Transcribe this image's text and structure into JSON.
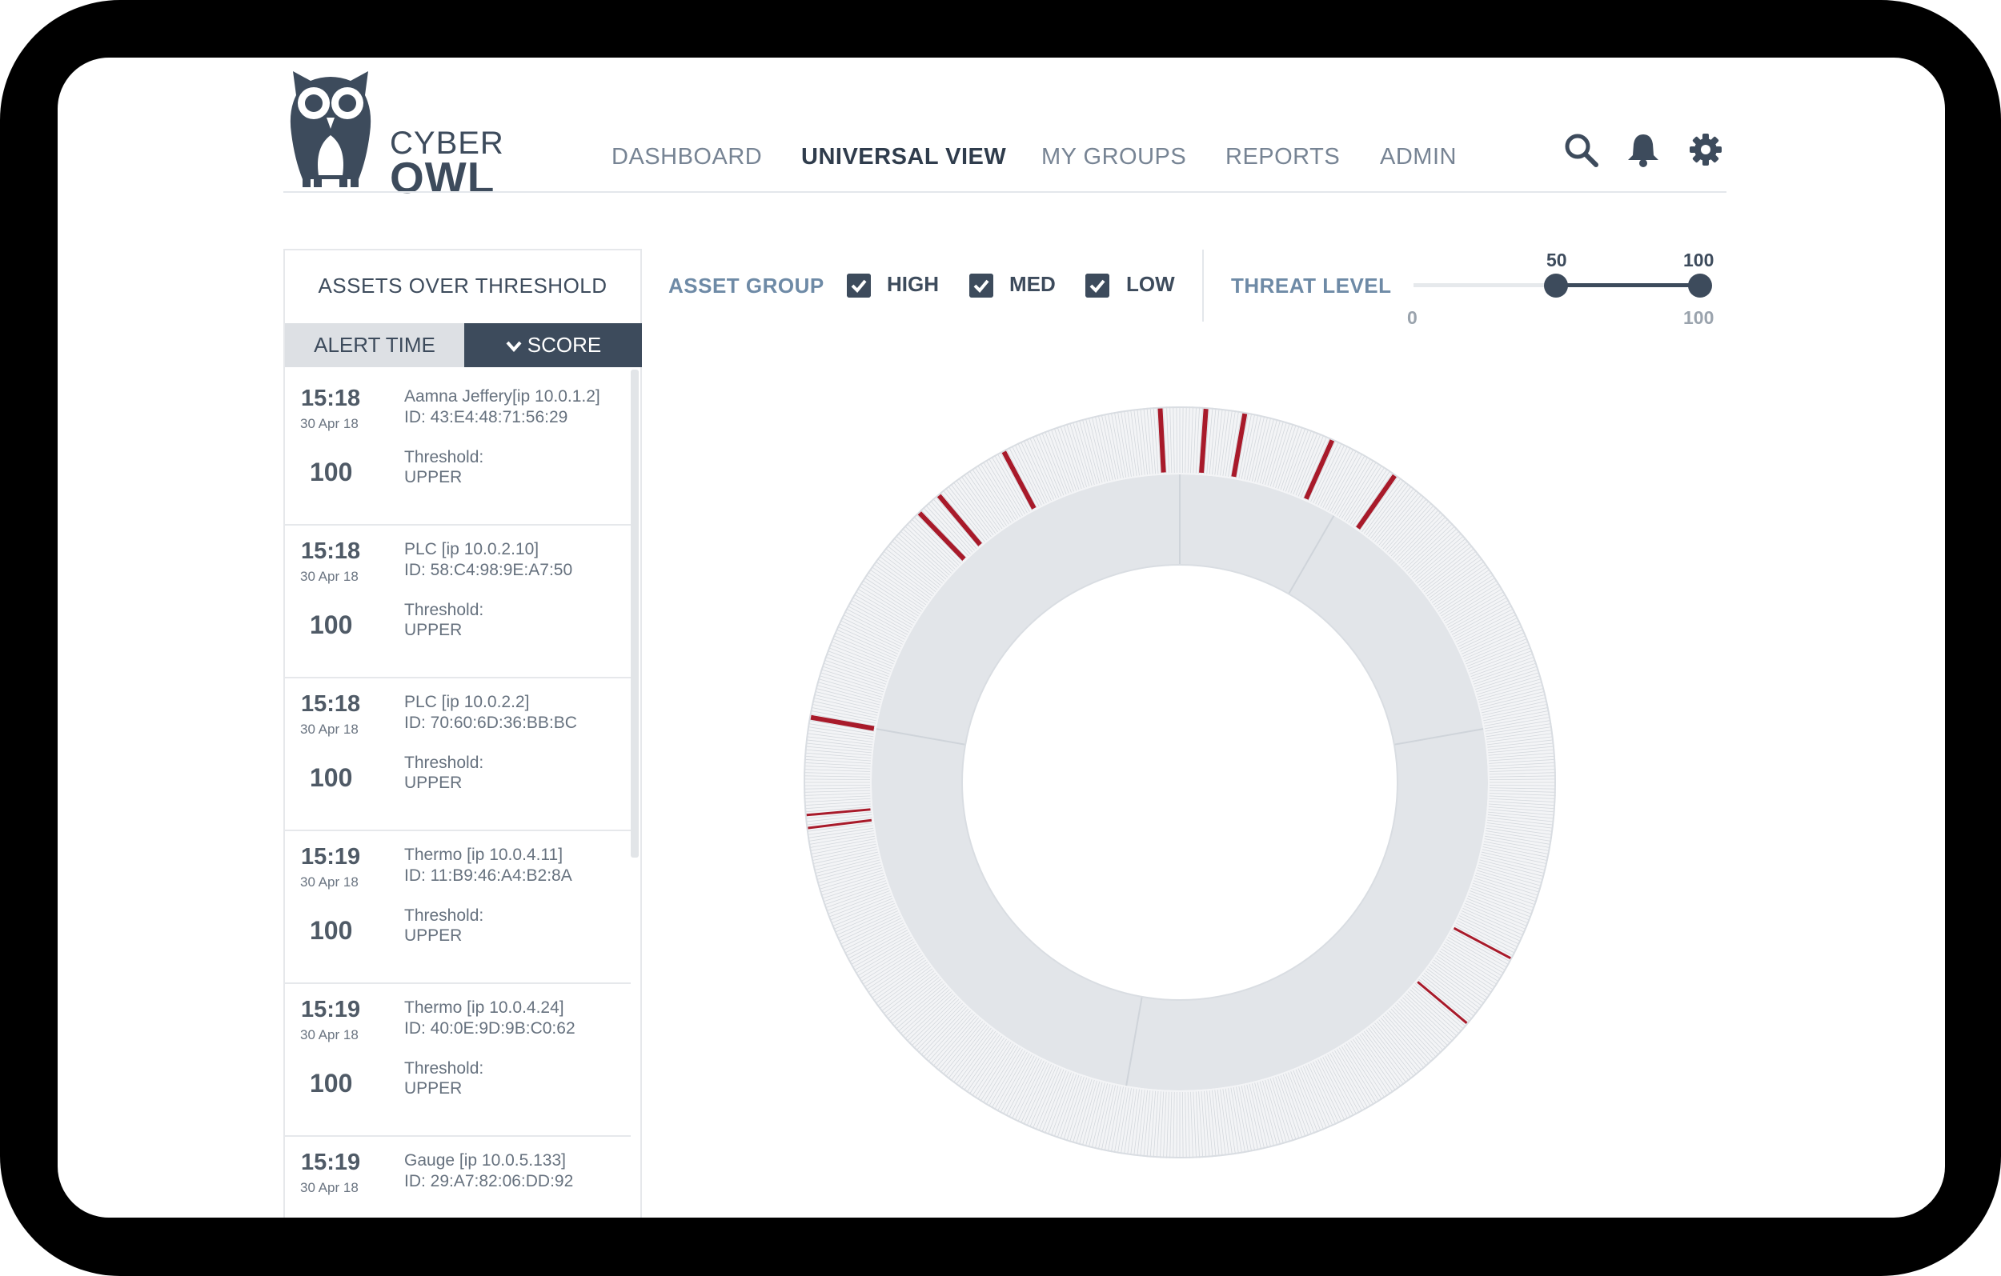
{
  "brand": {
    "line1": "CYBER",
    "line2": "OWL"
  },
  "nav": [
    "DASHBOARD",
    "UNIVERSAL VIEW",
    "MY GROUPS",
    "REPORTS",
    "ADMIN"
  ],
  "nav_active": "UNIVERSAL VIEW",
  "header_icons": [
    "search-icon",
    "bell-icon",
    "gear-icon"
  ],
  "panel": {
    "title": "ASSETS OVER THRESHOLD",
    "tab_alert_time": "ALERT TIME",
    "tab_score": "SCORE",
    "sort_icon": "chevron-down-icon",
    "items": [
      {
        "time": "15:18",
        "date": "30 Apr 18",
        "score": "100",
        "name": "Aamna Jeffery[ip 10.0.1.2]",
        "id": "ID: 43:E4:48:71:56:29",
        "threshold_label": "Threshold:",
        "threshold_value": "UPPER"
      },
      {
        "time": "15:18",
        "date": "30 Apr 18",
        "score": "100",
        "name": "PLC [ip 10.0.2.10]",
        "id": "ID: 58:C4:98:9E:A7:50",
        "threshold_label": "Threshold:",
        "threshold_value": "UPPER"
      },
      {
        "time": "15:18",
        "date": "30 Apr 18",
        "score": "100",
        "name": "PLC [ip 10.0.2.2]",
        "id": "ID: 70:60:6D:36:BB:BC",
        "threshold_label": "Threshold:",
        "threshold_value": "UPPER"
      },
      {
        "time": "15:19",
        "date": "30 Apr 18",
        "score": "100",
        "name": "Thermo [ip 10.0.4.11]",
        "id": "ID: 11:B9:46:A4:B2:8A",
        "threshold_label": "Threshold:",
        "threshold_value": "UPPER"
      },
      {
        "time": "15:19",
        "date": "30 Apr 18",
        "score": "100",
        "name": "Thermo [ip 10.0.4.24]",
        "id": "ID: 40:0E:9D:9B:C0:62",
        "threshold_label": "Threshold:",
        "threshold_value": "UPPER"
      },
      {
        "time": "15:19",
        "date": "30 Apr 18",
        "score": "",
        "name": "Gauge [ip 10.0.5.133]",
        "id": "ID: 29:A7:82:06:DD:92",
        "threshold_label": "",
        "threshold_value": ""
      }
    ]
  },
  "filters": {
    "asset_group_label": "ASSET GROUP",
    "checkboxes": [
      {
        "label": "HIGH",
        "checked": true
      },
      {
        "label": "MED",
        "checked": true
      },
      {
        "label": "LOW",
        "checked": true
      }
    ],
    "threat_level_label": "THREAT LEVEL",
    "slider": {
      "min_label": "0",
      "max_label": "100",
      "low_value": "50",
      "high_value": "100"
    }
  },
  "colors": {
    "primary": "#3d4b5c",
    "accent_label": "#6e8aa6",
    "alert_red": "#a81a2a",
    "ring_fill": "#e2e5e9"
  }
}
